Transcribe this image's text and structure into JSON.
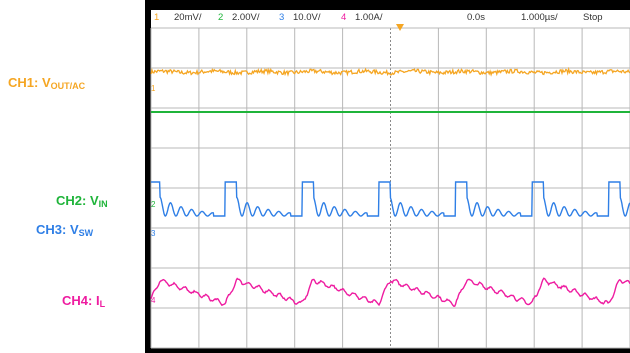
{
  "header": {
    "ch1": {
      "num": "1",
      "scale": "20mV/",
      "color": "#f5a623"
    },
    "ch2": {
      "num": "2",
      "scale": "2.00V/",
      "color": "#1fb43a"
    },
    "ch3": {
      "num": "3",
      "scale": "10.0V/",
      "color": "#2f7fe6"
    },
    "ch4": {
      "num": "4",
      "scale": "1.00A/",
      "color": "#ee1ca0"
    },
    "time_offset": "0.0s",
    "timebase": "1.000µs/",
    "run_state": "Stop"
  },
  "labels": {
    "ch1": {
      "main": "CH1: V",
      "sub": "OUT/AC",
      "color": "#f5a623"
    },
    "ch2": {
      "main": "CH2: V",
      "sub": "IN",
      "color": "#1fb43a"
    },
    "ch3": {
      "main": "CH3: V",
      "sub": "SW",
      "color": "#2f7fe6"
    },
    "ch4": {
      "main": "CH4: I",
      "sub": "L",
      "color": "#ee1ca0"
    }
  },
  "chart_data": {
    "type": "line",
    "grid": true,
    "divisions": {
      "x": 10,
      "y": 8
    },
    "x_unit": "div",
    "x_range": [
      0,
      10
    ],
    "switching_period_div": 1.6,
    "series": [
      {
        "id": "ch1",
        "color": "#f5a623",
        "level_div": 6.9,
        "noise_div": 0.05,
        "shape": "noisy-flat"
      },
      {
        "id": "ch2",
        "color": "#1fb43a",
        "level_div": 5.9,
        "shape": "flat"
      },
      {
        "id": "ch3",
        "color": "#2f7fe6",
        "low_div": 3.3,
        "high_div": 4.15,
        "shape": "switching-ringing"
      },
      {
        "id": "ch4",
        "color": "#ee1ca0",
        "min_div": 1.1,
        "max_div": 1.7,
        "shape": "triangular-ripple"
      }
    ]
  }
}
